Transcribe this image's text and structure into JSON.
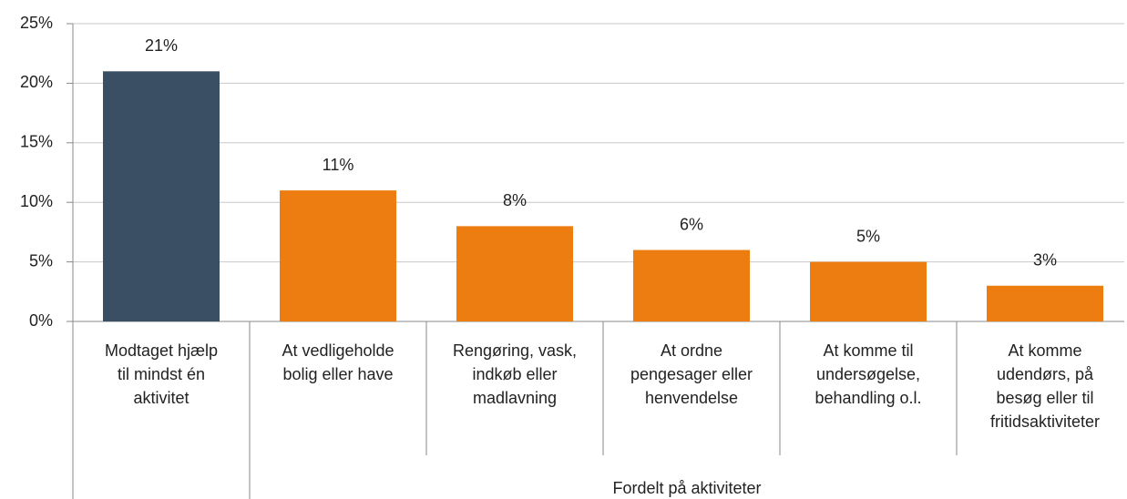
{
  "chart_data": {
    "type": "bar",
    "categories": [
      [
        "Modtaget hjælp",
        "til mindst én",
        "aktivitet"
      ],
      [
        "At vedligeholde",
        "bolig eller have"
      ],
      [
        "Rengøring, vask,",
        "indkøb eller",
        "madlavning"
      ],
      [
        "At ordne",
        "pengesager eller",
        "henvendelse"
      ],
      [
        "At komme til",
        "undersøgelse,",
        "behandling o.l."
      ],
      [
        "At komme",
        "udendørs, på",
        "besøg eller til",
        "fritidsaktiviteter"
      ]
    ],
    "values": [
      21,
      11,
      8,
      6,
      5,
      3
    ],
    "value_labels": [
      "21%",
      "11%",
      "8%",
      "6%",
      "5%",
      "3%"
    ],
    "colors": [
      "#3a4f63",
      "#ed7d10",
      "#ed7d10",
      "#ed7d10",
      "#ed7d10",
      "#ed7d10"
    ],
    "group_label": "Fordelt på aktiviteter",
    "ylim": [
      0,
      25
    ],
    "yticks": [
      {
        "value": 0,
        "label": "0%"
      },
      {
        "value": 5,
        "label": "5%"
      },
      {
        "value": 10,
        "label": "10%"
      },
      {
        "value": 15,
        "label": "15%"
      },
      {
        "value": 20,
        "label": "20%"
      },
      {
        "value": 25,
        "label": "25%"
      }
    ],
    "grid": true
  }
}
